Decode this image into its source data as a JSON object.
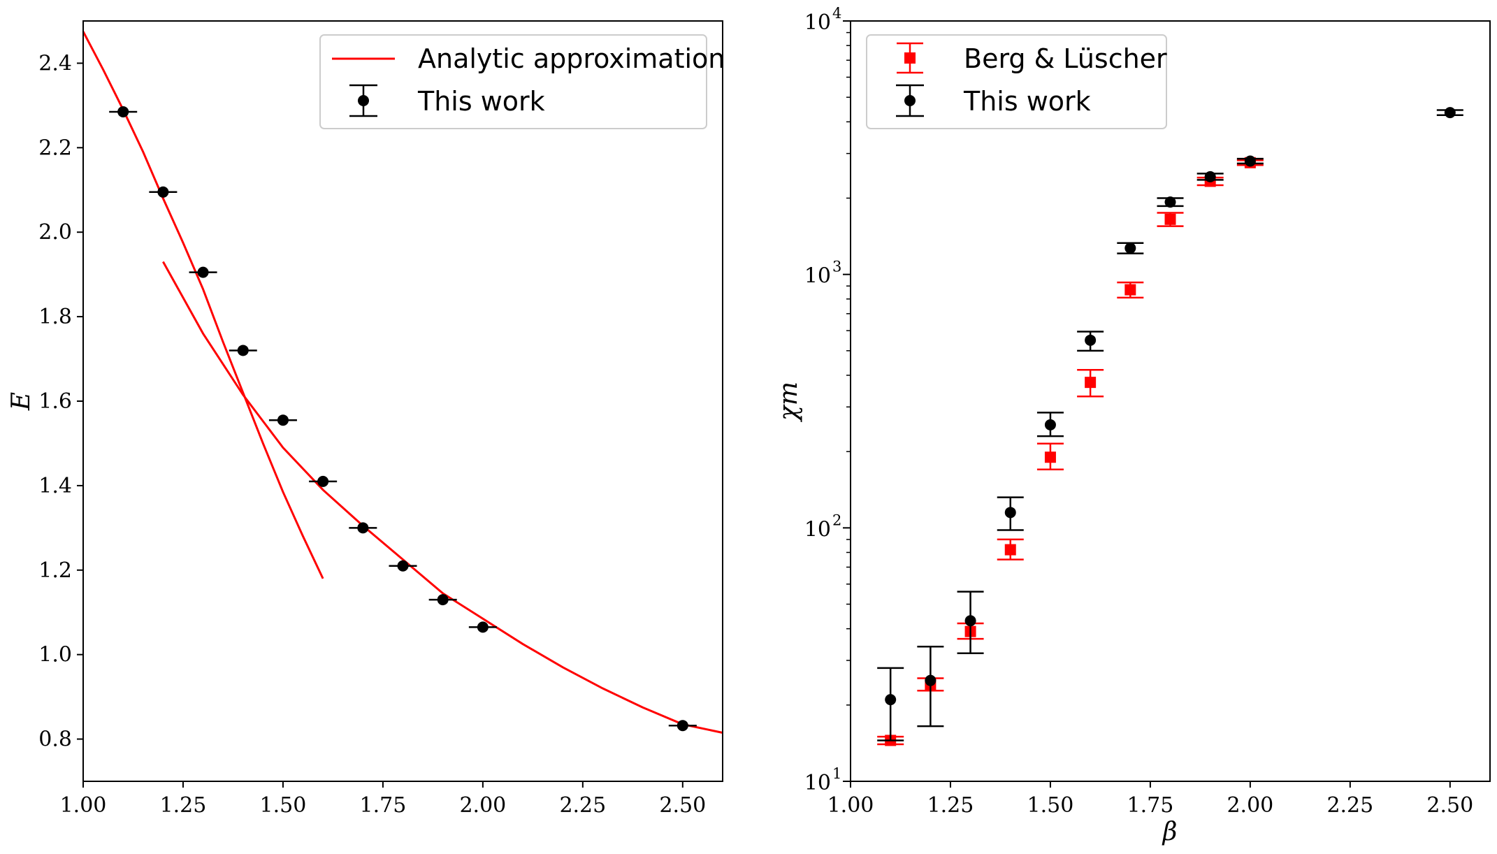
{
  "chart_data": [
    {
      "type": "scatter",
      "title": "",
      "xlabel": "",
      "ylabel": "E",
      "xlim": [
        1.0,
        2.6
      ],
      "ylim": [
        0.7,
        2.5
      ],
      "x_ticks": [
        "1.00",
        "1.25",
        "1.50",
        "1.75",
        "2.00",
        "2.25",
        "2.50"
      ],
      "y_ticks": [
        "0.8",
        "1.0",
        "1.2",
        "1.4",
        "1.6",
        "1.8",
        "2.0",
        "2.2",
        "2.4"
      ],
      "grid": false,
      "legend_position": "top-right",
      "series": [
        {
          "name": "Analytic approximation",
          "kind": "line",
          "color": "#ff0000",
          "x": [
            1.0,
            1.05,
            1.1,
            1.15,
            1.2,
            1.25,
            1.3,
            1.35,
            1.4,
            1.45,
            1.5,
            1.55,
            1.6
          ],
          "y": [
            2.475,
            2.385,
            2.29,
            2.19,
            2.08,
            1.975,
            1.865,
            1.74,
            1.62,
            1.5,
            1.385,
            1.28,
            1.18
          ]
        },
        {
          "name": "",
          "kind": "line",
          "color": "#ff0000",
          "x": [
            1.2,
            1.3,
            1.4,
            1.5,
            1.6,
            1.7,
            1.8,
            1.9,
            2.0,
            2.1,
            2.2,
            2.3,
            2.4,
            2.5,
            2.6
          ],
          "y": [
            1.93,
            1.76,
            1.615,
            1.49,
            1.39,
            1.305,
            1.225,
            1.145,
            1.085,
            1.025,
            0.97,
            0.92,
            0.875,
            0.835,
            0.815
          ]
        },
        {
          "name": "This work",
          "kind": "errorbar",
          "color": "#000000",
          "x": [
            1.1,
            1.2,
            1.3,
            1.4,
            1.5,
            1.6,
            1.7,
            1.8,
            1.9,
            2.0,
            2.5
          ],
          "y": [
            2.285,
            2.095,
            1.905,
            1.72,
            1.555,
            1.41,
            1.3,
            1.21,
            1.13,
            1.065,
            0.832
          ],
          "xerr": [
            0.035,
            0.035,
            0.035,
            0.035,
            0.035,
            0.035,
            0.035,
            0.035,
            0.035,
            0.035,
            0.035
          ]
        }
      ]
    },
    {
      "type": "scatter",
      "title": "",
      "xlabel": "β",
      "ylabel": "χm",
      "yscale": "log",
      "xlim": [
        1.0,
        2.6
      ],
      "ylim": [
        10,
        10000
      ],
      "x_ticks": [
        "1.00",
        "1.25",
        "1.50",
        "1.75",
        "2.00",
        "2.25",
        "2.50"
      ],
      "y_ticks": [
        {
          "base": "10",
          "exp": "1"
        },
        {
          "base": "10",
          "exp": "2"
        },
        {
          "base": "10",
          "exp": "3"
        },
        {
          "base": "10",
          "exp": "4"
        }
      ],
      "grid": false,
      "legend_position": "top-left",
      "series": [
        {
          "name": "Berg & Lüscher",
          "kind": "errorbar",
          "marker": "square",
          "color": "#ff0000",
          "x": [
            1.1,
            1.2,
            1.3,
            1.4,
            1.5,
            1.6,
            1.7,
            1.8,
            1.9,
            2.0
          ],
          "y": [
            14.5,
            24,
            39,
            82,
            190,
            375,
            870,
            1650,
            2330,
            2760
          ],
          "ylow": [
            14,
            22.8,
            36.5,
            75,
            170,
            330,
            810,
            1550,
            2250,
            2700
          ],
          "yhigh": [
            15,
            25.5,
            42,
            90,
            215,
            420,
            930,
            1750,
            2410,
            2820
          ]
        },
        {
          "name": "This work",
          "kind": "errorbar",
          "marker": "circle",
          "color": "#000000",
          "x": [
            1.1,
            1.2,
            1.3,
            1.4,
            1.5,
            1.6,
            1.7,
            1.8,
            1.9,
            2.0,
            2.5
          ],
          "y": [
            21,
            25,
            43,
            115,
            255,
            550,
            1270,
            1930,
            2430,
            2800,
            4350
          ],
          "ylow": [
            14.5,
            16.5,
            32,
            98,
            230,
            500,
            1210,
            1860,
            2360,
            2740,
            4250
          ],
          "yhigh": [
            28,
            34,
            56,
            132,
            285,
            595,
            1330,
            2000,
            2500,
            2860,
            4450
          ]
        }
      ]
    }
  ]
}
